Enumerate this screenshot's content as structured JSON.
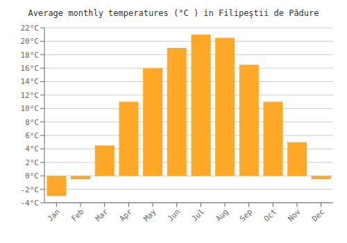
{
  "chart_data": {
    "type": "bar",
    "title": "Average monthly temperatures (°C ) in Filipeştii de Pădure",
    "categories": [
      "Jan",
      "Feb",
      "Mar",
      "Apr",
      "May",
      "Jun",
      "Jul",
      "Aug",
      "Sep",
      "Oct",
      "Nov",
      "Dec"
    ],
    "values": [
      -3,
      -0.5,
      4.5,
      11,
      16,
      19,
      21,
      20.5,
      16.5,
      11,
      5,
      -0.5
    ],
    "color": "#FFA726",
    "ylim": [
      -4,
      22
    ],
    "yticks": [
      {
        "value": -4,
        "label": "-4°C"
      },
      {
        "value": -2,
        "label": "-2°C"
      },
      {
        "value": 0,
        "label": "0°C"
      },
      {
        "value": 2,
        "label": "2°C"
      },
      {
        "value": 4,
        "label": "4°C"
      },
      {
        "value": 6,
        "label": "6°C"
      },
      {
        "value": 8,
        "label": "8°C"
      },
      {
        "value": 10,
        "label": "10°C"
      },
      {
        "value": 12,
        "label": "12°C"
      },
      {
        "value": 14,
        "label": "14°C"
      },
      {
        "value": 16,
        "label": "16°C"
      },
      {
        "value": 18,
        "label": "18°C"
      },
      {
        "value": 20,
        "label": "20°C"
      },
      {
        "value": 22,
        "label": "22°C"
      }
    ],
    "grid": true
  }
}
